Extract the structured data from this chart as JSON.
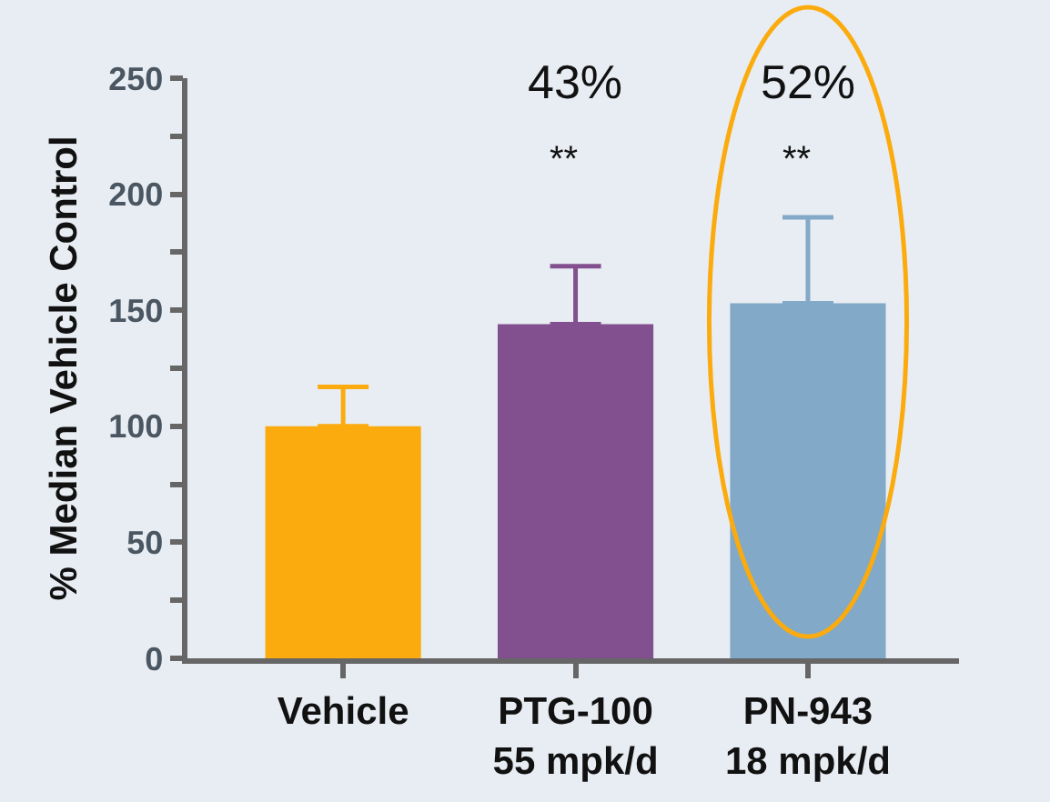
{
  "chart_data": {
    "type": "bar",
    "ylabel": "% Median Vehicle Control",
    "categories": [
      "Vehicle",
      "PTG-100\n55 mpk/d",
      "PN-943\n18 mpk/d"
    ],
    "values": [
      100,
      144,
      153
    ],
    "colors": [
      "#fbab0d",
      "#82508e",
      "#82a9c8"
    ],
    "errors": [
      [
        100,
        117
      ],
      [
        144,
        169
      ],
      [
        153,
        190
      ]
    ],
    "ylim": [
      0,
      250
    ],
    "yticks": [
      0,
      {
        "value": 25,
        "label": null
      },
      50,
      {
        "value": 75,
        "label": null
      },
      100,
      {
        "value": 125,
        "label": null
      },
      150,
      {
        "value": 175,
        "label": null
      },
      200,
      {
        "value": 225,
        "label": null
      },
      250
    ],
    "annotations": [
      "43%",
      "**",
      "52%",
      "**"
    ]
  }
}
